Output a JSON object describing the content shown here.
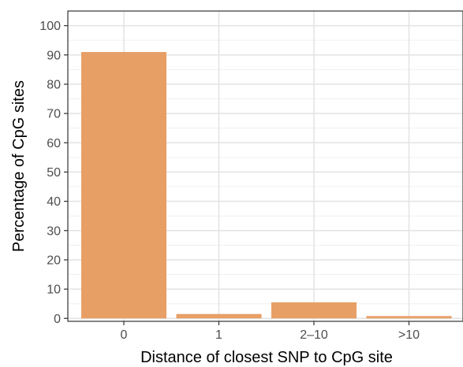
{
  "chart_data": {
    "type": "bar",
    "categories": [
      "0",
      "1",
      "2–10",
      ">10"
    ],
    "values": [
      91,
      1.5,
      5.5,
      0.8
    ],
    "xlabel": "Distance of closest SNP to CpG site",
    "ylabel": "Percentage of CpG sites",
    "ylim": [
      -1,
      105
    ],
    "yticks": [
      0,
      10,
      20,
      30,
      40,
      50,
      60,
      70,
      80,
      90,
      100
    ],
    "grid": true,
    "bar_color": "#E89F66"
  }
}
